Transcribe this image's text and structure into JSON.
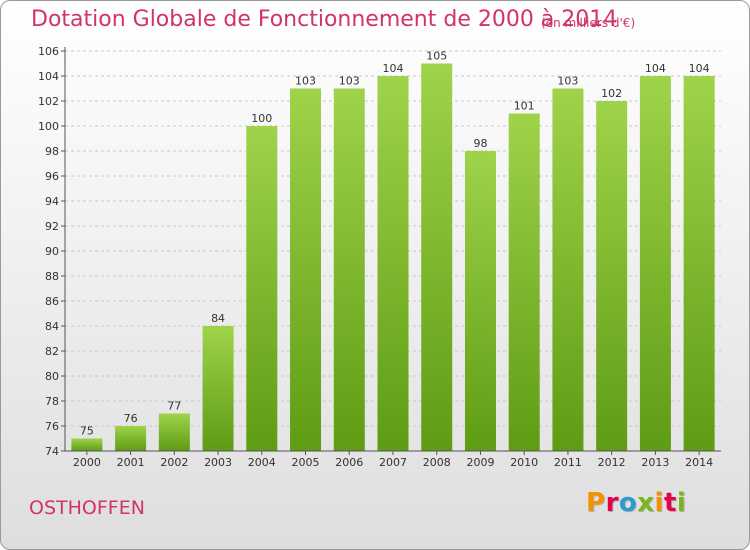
{
  "header": {
    "title": "Dotation Globale de Fonctionnement de 2000 à 2014",
    "subtitle": "(en milliers d'€)"
  },
  "footer": {
    "commune": "OSTHOFFEN",
    "logo_text": "Proxiti",
    "logo_colors": [
      "#f39200",
      "#e5004b",
      "#2e9ad0",
      "#7ab51d",
      "#f39200",
      "#e5004b",
      "#7ab51d"
    ]
  },
  "colors": {
    "bar_top": "#9fd34a",
    "bar_bottom": "#5e9c14",
    "accent": "#d1336a"
  },
  "chart_data": {
    "type": "bar",
    "title": "Dotation Globale de Fonctionnement de 2000 à 2014",
    "subtitle": "(en milliers d'€)",
    "categories": [
      "2000",
      "2001",
      "2002",
      "2003",
      "2004",
      "2005",
      "2006",
      "2007",
      "2008",
      "2009",
      "2010",
      "2011",
      "2012",
      "2013",
      "2014"
    ],
    "values": [
      75,
      76,
      77,
      84,
      100,
      103,
      103,
      104,
      105,
      98,
      101,
      103,
      102,
      104,
      104
    ],
    "ylim": [
      74,
      106
    ],
    "yticks": [
      74,
      76,
      78,
      80,
      82,
      84,
      86,
      88,
      90,
      92,
      94,
      96,
      98,
      100,
      102,
      104,
      106
    ],
    "grid": "horizontal dashed",
    "xlabel": "",
    "ylabel": ""
  }
}
